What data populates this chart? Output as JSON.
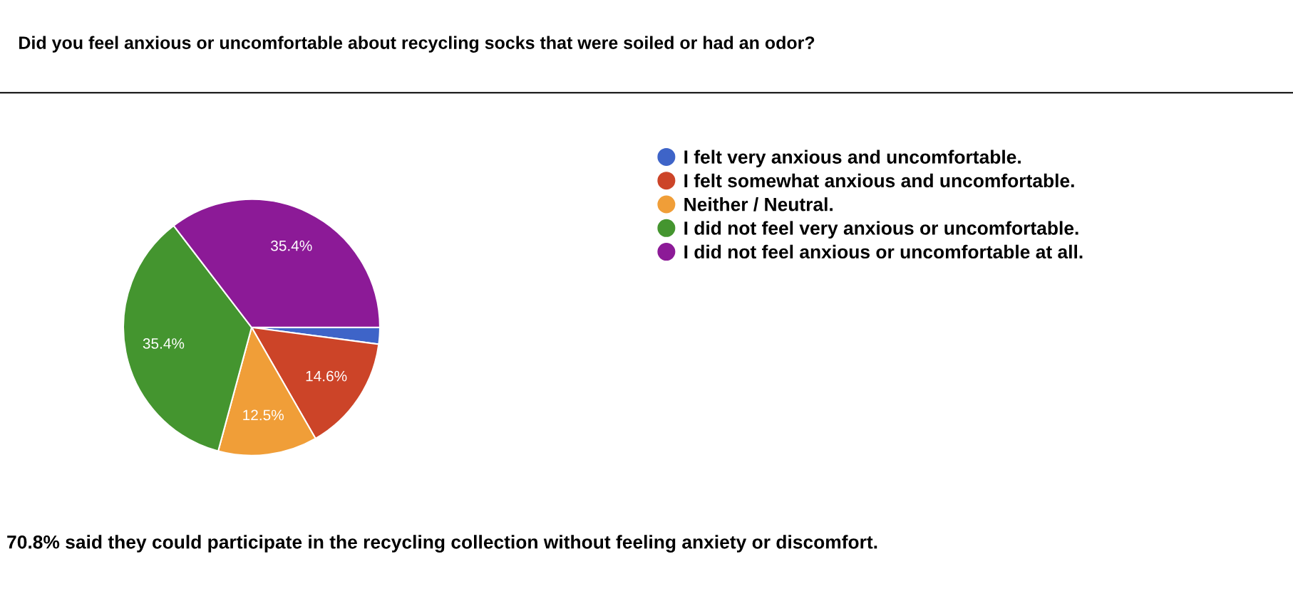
{
  "chart_data": {
    "type": "pie",
    "title": "Did you feel anxious or uncomfortable about recycling socks that were soiled or had an odor?",
    "categories": [
      "I felt very anxious and uncomfortable.",
      "I felt somewhat anxious and uncomfortable.",
      "Neither / Neutral.",
      "I did not feel very anxious or uncomfortable.",
      "I did not feel anxious or uncomfortable at all."
    ],
    "values": [
      2.1,
      14.6,
      12.5,
      35.4,
      35.4
    ],
    "colors": [
      "#3e64c8",
      "#cc4428",
      "#f09e38",
      "#44952f",
      "#8c1a97"
    ],
    "value_labels": [
      null,
      "14.6%",
      "12.5%",
      "35.4%",
      "35.4%"
    ],
    "legend": "right",
    "annotations": [
      "70.8% said they could participate in the recycling collection without feeling anxiety or discomfort."
    ]
  }
}
